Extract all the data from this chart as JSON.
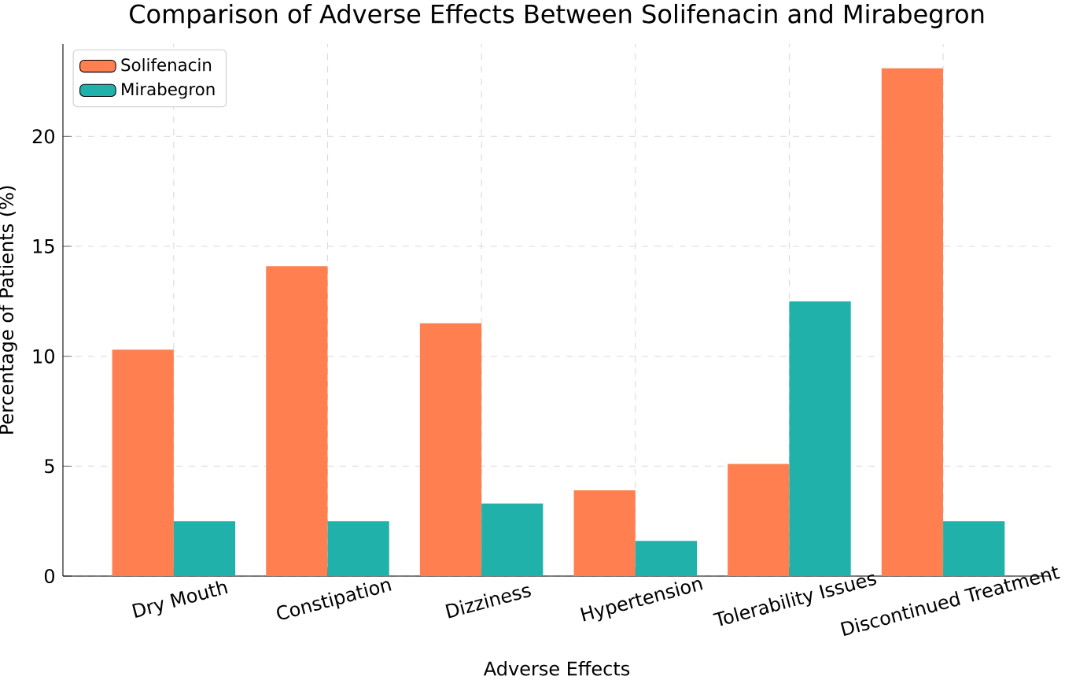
{
  "chart_data": {
    "type": "bar",
    "title": "Comparison of Adverse Effects Between Solifenacin and Mirabegron",
    "xlabel": "Adverse Effects",
    "ylabel": "Percentage of Patients (%)",
    "categories": [
      "Dry Mouth",
      "Constipation",
      "Dizziness",
      "Hypertension",
      "Tolerability Issues",
      "Discontinued Treatment"
    ],
    "series": [
      {
        "name": "Solifenacin",
        "color": "#ff7f50",
        "values": [
          10.3,
          14.1,
          11.5,
          3.9,
          5.1,
          23.1
        ]
      },
      {
        "name": "Mirabegron",
        "color": "#20b2aa",
        "values": [
          2.5,
          2.5,
          3.3,
          1.6,
          12.5,
          2.5
        ]
      }
    ],
    "ylim": [
      0,
      24.2
    ],
    "yticks": [
      0,
      5,
      10,
      15,
      20
    ],
    "grid": true,
    "legend": "top left"
  }
}
